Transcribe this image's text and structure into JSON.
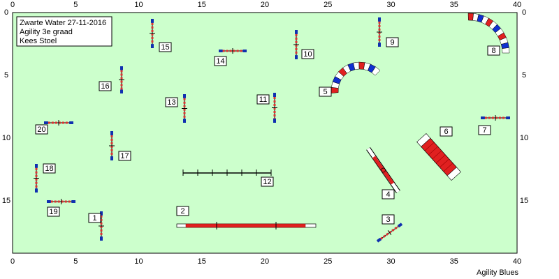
{
  "header": {
    "lines": [
      "Zwarte Water 27-11-2016",
      "Agility 3e graad",
      "Kees Stoel"
    ]
  },
  "axes": {
    "x_ticks": [
      0,
      5,
      10,
      15,
      20,
      25,
      30,
      35,
      40
    ],
    "y_ticks": [
      0,
      5,
      10,
      15
    ]
  },
  "obstacle_numbers": [
    1,
    2,
    3,
    4,
    5,
    6,
    7,
    8,
    9,
    10,
    11,
    12,
    13,
    14,
    15,
    16,
    17,
    18,
    19,
    20
  ],
  "footer": "Agility Blues"
}
